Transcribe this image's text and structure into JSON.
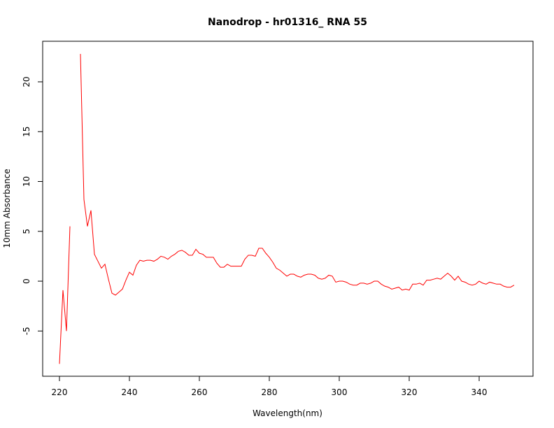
{
  "chart_data": {
    "type": "line",
    "title": "Nanodrop - hr01316_ RNA 55",
    "x_label": "Wavelength(nm)",
    "y_label": "10mm Absorbance",
    "x": [
      220,
      221,
      222,
      223,
      224,
      225,
      226,
      227,
      228,
      229,
      230,
      231,
      232,
      233,
      234,
      235,
      236,
      237,
      238,
      239,
      240,
      241,
      242,
      243,
      244,
      245,
      246,
      247,
      248,
      249,
      250,
      251,
      252,
      253,
      254,
      255,
      256,
      257,
      258,
      259,
      260,
      261,
      262,
      263,
      264,
      265,
      266,
      267,
      268,
      269,
      270,
      271,
      272,
      273,
      274,
      275,
      276,
      277,
      278,
      279,
      280,
      281,
      282,
      283,
      284,
      285,
      286,
      287,
      288,
      289,
      290,
      291,
      292,
      293,
      294,
      295,
      296,
      297,
      298,
      299,
      300,
      301,
      302,
      303,
      304,
      305,
      306,
      307,
      308,
      309,
      310,
      311,
      312,
      313,
      314,
      315,
      316,
      317,
      318,
      319,
      320,
      321,
      322,
      323,
      324,
      325,
      326,
      327,
      328,
      329,
      330,
      331,
      332,
      333,
      334,
      335,
      336,
      337,
      338,
      339,
      340,
      341,
      342,
      343,
      344,
      345,
      346,
      347,
      348,
      349,
      350
    ],
    "series": [
      {
        "name": "Absorbance",
        "color": "#ff0000",
        "values": [
          -8.3,
          -0.9,
          -5.0,
          5.5,
          null,
          null,
          22.8,
          8.2,
          5.5,
          7.1,
          2.7,
          2.0,
          1.3,
          1.7,
          0.2,
          -1.2,
          -1.4,
          -1.1,
          -0.8,
          0.1,
          0.9,
          0.6,
          1.6,
          2.1,
          2.0,
          2.1,
          2.1,
          2.0,
          2.2,
          2.5,
          2.4,
          2.2,
          2.5,
          2.7,
          3.0,
          3.1,
          2.9,
          2.6,
          2.6,
          3.2,
          2.8,
          2.7,
          2.4,
          2.4,
          2.4,
          1.8,
          1.4,
          1.4,
          1.7,
          1.5,
          1.5,
          1.5,
          1.5,
          2.2,
          2.6,
          2.6,
          2.5,
          3.3,
          3.3,
          2.8,
          2.4,
          1.9,
          1.3,
          1.1,
          0.8,
          0.5,
          0.7,
          0.7,
          0.5,
          0.4,
          0.6,
          0.7,
          0.7,
          0.6,
          0.3,
          0.2,
          0.3,
          0.6,
          0.5,
          -0.1,
          0.0,
          0.0,
          -0.1,
          -0.3,
          -0.4,
          -0.4,
          -0.2,
          -0.2,
          -0.3,
          -0.2,
          0.0,
          0.0,
          -0.3,
          -0.5,
          -0.6,
          -0.8,
          -0.7,
          -0.6,
          -0.9,
          -0.8,
          -0.9,
          -0.3,
          -0.3,
          -0.2,
          -0.4,
          0.1,
          0.1,
          0.2,
          0.3,
          0.2,
          0.5,
          0.8,
          0.5,
          0.1,
          0.5,
          0.0,
          -0.1,
          -0.3,
          -0.4,
          -0.3,
          0.0,
          -0.2,
          -0.3,
          -0.1,
          -0.2,
          -0.3,
          -0.3,
          -0.5,
          -0.6,
          -0.6,
          -0.4
        ]
      }
    ],
    "xlim": [
      215.2,
      355.4
    ],
    "xticks": [
      220,
      240,
      260,
      280,
      300,
      320,
      340
    ],
    "ylim": [
      -9.54,
      24.07
    ],
    "yticks": [
      -5,
      0,
      5,
      10,
      15,
      20
    ],
    "grid": false
  }
}
